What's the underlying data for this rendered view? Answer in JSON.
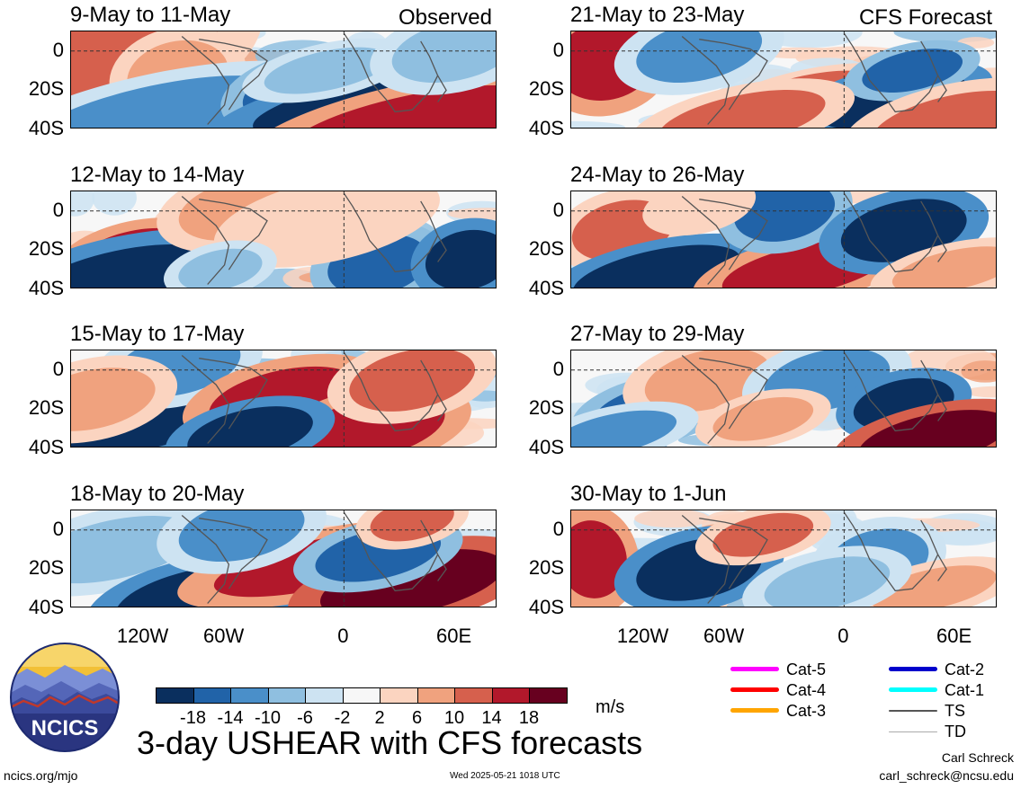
{
  "panels": [
    {
      "title": "9-May to 11-May",
      "tag": "Observed"
    },
    {
      "title": "12-May to 14-May",
      "tag": ""
    },
    {
      "title": "15-May to 17-May",
      "tag": ""
    },
    {
      "title": "18-May to 20-May",
      "tag": ""
    },
    {
      "title": "21-May to 23-May",
      "tag": "CFS Forecast"
    },
    {
      "title": "24-May to 26-May",
      "tag": ""
    },
    {
      "title": "27-May to 29-May",
      "tag": ""
    },
    {
      "title": "30-May to 1-Jun",
      "tag": ""
    }
  ],
  "axes": {
    "lat_labels": [
      "0",
      "20S",
      "40S"
    ],
    "lon_labels": [
      "120W",
      "60W",
      "0",
      "60E"
    ]
  },
  "colorbar": {
    "units": "m/s",
    "labels": [
      "-18",
      "-14",
      "-10",
      "-6",
      "-2",
      "2",
      "6",
      "10",
      "14",
      "18"
    ],
    "colors": [
      "#0a2f5e",
      "#2163a8",
      "#4a8fc9",
      "#8fbfe0",
      "#cde3f2",
      "#f7f7f7",
      "#fbd4c0",
      "#f0a27e",
      "#d6604d",
      "#b2182b",
      "#67001f"
    ]
  },
  "legend": [
    {
      "label": "Cat-5",
      "color": "#ff00ff"
    },
    {
      "label": "Cat-4",
      "color": "#ff0000"
    },
    {
      "label": "Cat-3",
      "color": "#ffa500"
    },
    {
      "label": "Cat-2",
      "color": "#0000cc"
    },
    {
      "label": "Cat-1",
      "color": "#00ffff"
    },
    {
      "label": "TS",
      "color": "#555555"
    },
    {
      "label": "TD",
      "color": "#aaaaaa"
    }
  ],
  "title": "3-day USHEAR with CFS forecasts",
  "logo_text": "NCICS",
  "footer": {
    "url": "ncics.org/mjo",
    "timestamp": "Wed 2025-05-21 1018 UTC",
    "author": "Carl Schreck",
    "email": "carl_schreck@ncsu.edu"
  }
}
